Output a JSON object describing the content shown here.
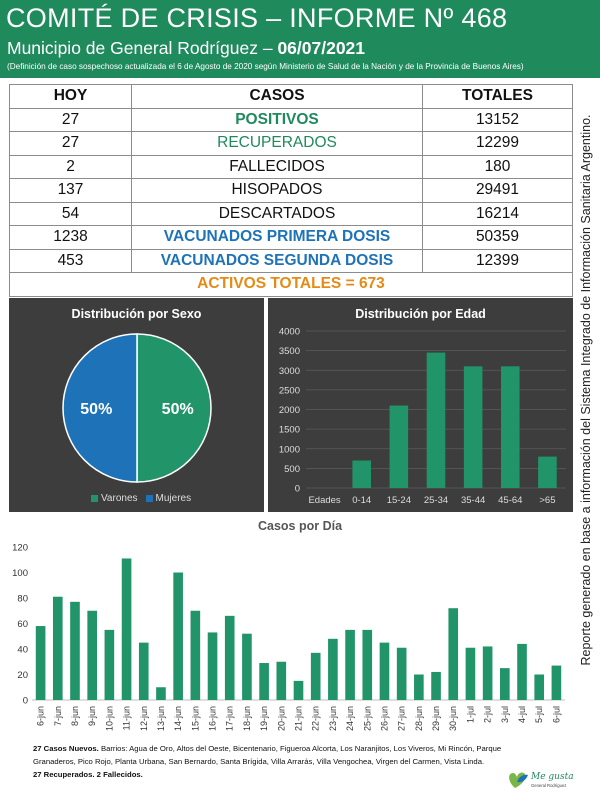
{
  "header": {
    "title": "COMITÉ DE CRISIS – INFORME Nº 468",
    "subtitle_prefix": "Municipio de General Rodríguez – ",
    "date": "06/07/2021",
    "note": "(Definición de caso sospechoso actualizada el 6 de Agosto de 2020 según Ministerio de Salud de la Nación y de la Provincia de Buenos Aires)"
  },
  "summary": {
    "headers": [
      "HOY",
      "CASOS",
      "TOTALES"
    ],
    "rows": [
      {
        "hoy": "27",
        "casos": "POSITIVOS",
        "totales": "13152"
      },
      {
        "hoy": "27",
        "casos": "RECUPERADOS",
        "totales": "12299"
      },
      {
        "hoy": "2",
        "casos": "FALLECIDOS",
        "totales": "180"
      },
      {
        "hoy": "137",
        "casos": "HISOPADOS",
        "totales": "29491"
      },
      {
        "hoy": "54",
        "casos": "DESCARTADOS",
        "totales": "16214"
      },
      {
        "hoy": "1238",
        "casos": "VACUNADOS PRIMERA DOSIS",
        "totales": "50359"
      },
      {
        "hoy": "453",
        "casos": "VACUNADOS SEGUNDA DOSIS",
        "totales": "12399"
      }
    ],
    "activos": "ACTIVOS TOTALES = 673"
  },
  "side_note": "Reporte generado en base a información del Sistema Integrado de Información Sanitaria Argentino.",
  "colors": {
    "brand_green": "#1f8a5c",
    "bar_green": "#22946a",
    "blue": "#1e73b8",
    "orange": "#e58a17",
    "panel_dark": "#3d3d3d"
  },
  "chart_data": [
    {
      "type": "pie",
      "title": "Distribución por Sexo",
      "categories": [
        "Varones",
        "Mujeres"
      ],
      "values": [
        50,
        50
      ],
      "data_labels": [
        "50%",
        "50%"
      ],
      "colors": [
        "#22946a",
        "#1e73b8"
      ],
      "legend": "bottom"
    },
    {
      "type": "bar",
      "title": "Distribución por Edad",
      "axis_label": "Edades",
      "categories": [
        "0-14",
        "15-24",
        "25-34",
        "35-44",
        "45-64",
        ">65"
      ],
      "values": [
        700,
        2100,
        3450,
        3100,
        3100,
        800
      ],
      "ylim": [
        0,
        4000
      ],
      "yticks": [
        0,
        500,
        1000,
        1500,
        2000,
        2500,
        3000,
        3500,
        4000
      ],
      "grid": true
    },
    {
      "type": "bar",
      "title": "Casos por Día",
      "categories": [
        "6-jun",
        "7-jun",
        "8-jun",
        "9-jun",
        "10-jun",
        "11-jun",
        "12-jun",
        "13-jun",
        "14-jun",
        "15-jun",
        "16-jun",
        "17-jun",
        "18-jun",
        "19-jun",
        "20-jun",
        "21-jun",
        "22-jun",
        "23-jun",
        "24-jun",
        "25-jun",
        "26-jun",
        "27-jun",
        "28-jun",
        "29-jun",
        "30-jun",
        "1-jul",
        "2-jul",
        "3-jul",
        "4-jul",
        "5-jul",
        "6-jul"
      ],
      "values": [
        58,
        81,
        77,
        70,
        55,
        111,
        45,
        10,
        100,
        70,
        53,
        66,
        52,
        29,
        30,
        15,
        37,
        48,
        55,
        55,
        45,
        41,
        20,
        22,
        72,
        41,
        42,
        25,
        44,
        20,
        27
      ],
      "ylim": [
        0,
        120
      ],
      "yticks": [
        0,
        20,
        40,
        60,
        80,
        100,
        120
      ],
      "grid": false
    }
  ],
  "footer": {
    "new_cases_bold": "27 Casos Nuevos.",
    "barrios": " Barrios: Agua de Oro, Altos del Oeste, Bicentenario, Figueroa Alcorta, Los Naranjitos, Los Viveros, Mi Rincón, Parque Granaderos, Pico Rojo, Planta Urbana, San Bernardo, Santa Brígida, Villa Arrarás, Villa Vengochea, Virgen del Carmen, Vista Linda.",
    "recovered": "27 Recuperados. 2 Fallecidos."
  },
  "logo": {
    "line1": "Me gusta",
    "line2": "General Rodríguez"
  }
}
